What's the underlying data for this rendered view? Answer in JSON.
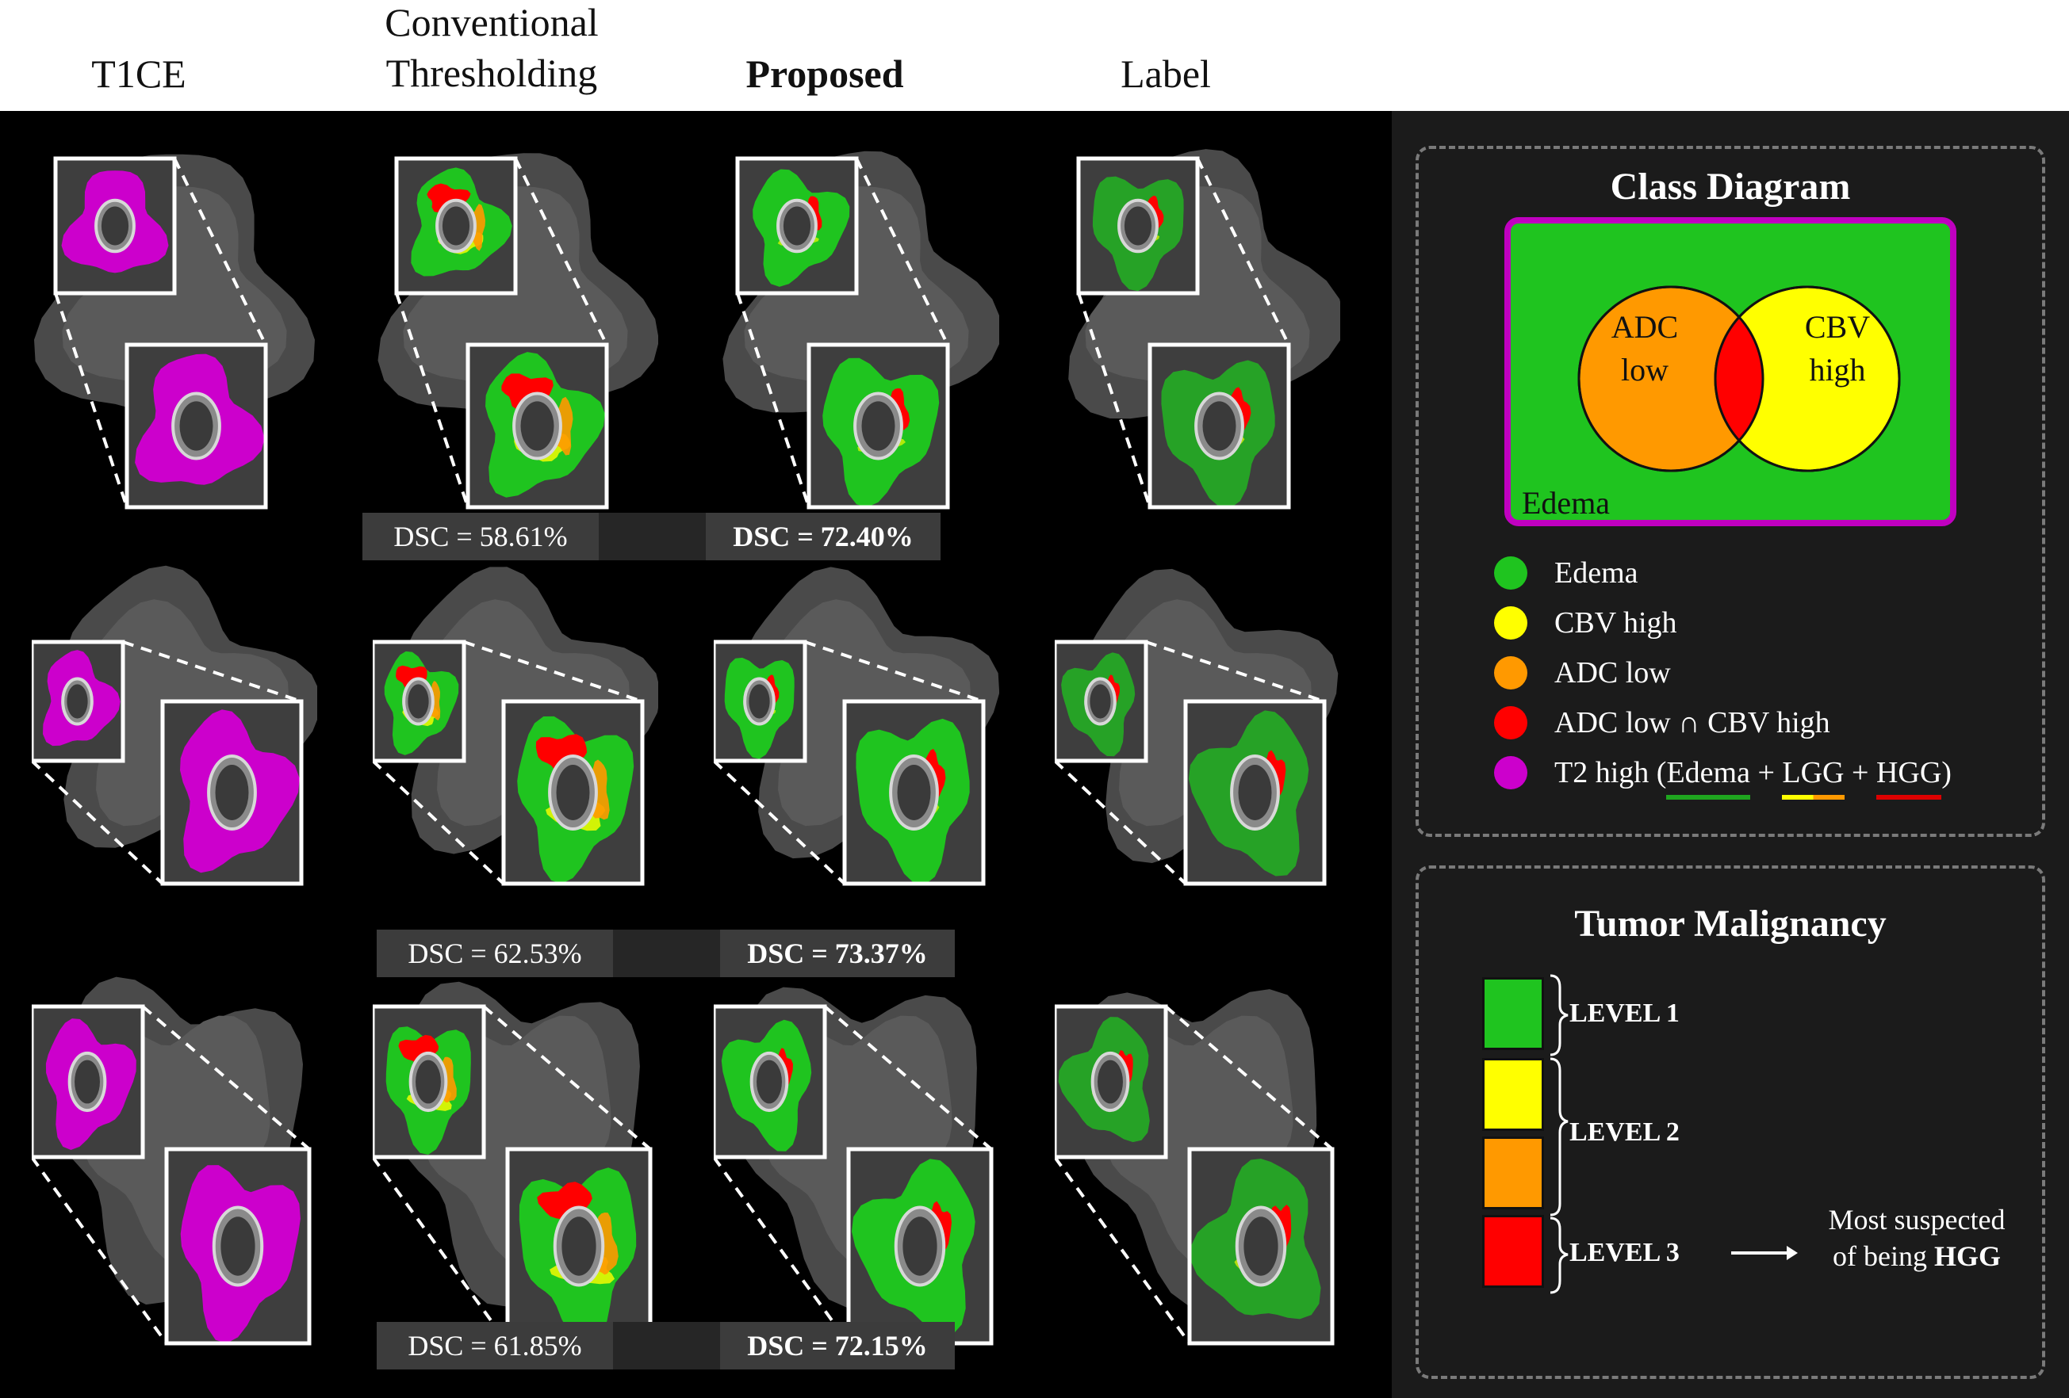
{
  "headers": {
    "t1ce": "T1CE",
    "conv_line1": "Conventional",
    "conv_line2": "Thresholding",
    "proposed": "Proposed",
    "label": "Label"
  },
  "dsc": {
    "row1": {
      "conventional": "DSC = 58.61%",
      "proposed": "DSC = 72.40%"
    },
    "row2": {
      "conventional": "DSC = 62.53%",
      "proposed": "DSC = 73.37%"
    },
    "row3": {
      "conventional": "DSC = 61.85%",
      "proposed": "DSC = 72.15%"
    }
  },
  "class_diagram": {
    "title": "Class Diagram",
    "adc_line1": "ADC",
    "adc_line2": "low",
    "cbv_line1": "CBV",
    "cbv_line2": "high",
    "edema": "Edema"
  },
  "legend": {
    "edema": "Edema",
    "cbv_high": "CBV high",
    "adc_low": "ADC low",
    "both": "ADC low ∩ CBV high",
    "t2_prefix": "T2 high (",
    "t2_edema": "Edema",
    "t2_plus1": " + ",
    "t2_lgg": "LGG",
    "t2_plus2": " + ",
    "t2_hgg": "HGG",
    "t2_suffix": ")"
  },
  "malignancy": {
    "title": "Tumor Malignancy",
    "level1": "LEVEL 1",
    "level2": "LEVEL 2",
    "level3": "LEVEL 3",
    "note_line1": "Most suspected",
    "note_line2_prefix": "of being ",
    "note_line2_bold": "HGG"
  },
  "colors": {
    "edema": "#1fc41f",
    "cbv_high": "#ffff00",
    "adc_low": "#ff9900",
    "both": "#ff0000",
    "t2_high": "#cc00cc"
  }
}
